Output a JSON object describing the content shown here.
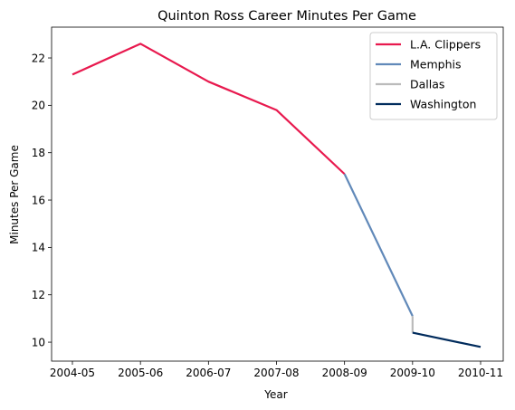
{
  "chart_data": {
    "type": "line",
    "title": "Quinton Ross Career Minutes Per Game",
    "xlabel": "Year",
    "ylabel": "Minutes Per Game",
    "categories": [
      "2004-05",
      "2005-06",
      "2006-07",
      "2007-08",
      "2008-09",
      "2009-10",
      "2010-11"
    ],
    "ylim": [
      9.2,
      23.3
    ],
    "yticks": [
      10,
      12,
      14,
      16,
      18,
      20,
      22
    ],
    "grid": false,
    "legend_position": "top-right",
    "series": [
      {
        "name": "L.A. Clippers",
        "color": "#e8194e",
        "points": [
          {
            "x": "2004-05",
            "y": 21.3
          },
          {
            "x": "2005-06",
            "y": 22.6
          },
          {
            "x": "2006-07",
            "y": 21.0
          },
          {
            "x": "2007-08",
            "y": 19.8
          },
          {
            "x": "2008-09",
            "y": 17.1
          }
        ]
      },
      {
        "name": "Memphis",
        "color": "#6189b9",
        "points": [
          {
            "x": "2008-09",
            "y": 17.1
          },
          {
            "x": "2009-10",
            "y": 11.1
          }
        ]
      },
      {
        "name": "Dallas",
        "color": "#bbbbbb",
        "points": [
          {
            "x": "2009-10",
            "y": 11.1
          },
          {
            "x": "2009-10",
            "y": 10.4
          }
        ]
      },
      {
        "name": "Washington",
        "color": "#002b5c",
        "points": [
          {
            "x": "2009-10",
            "y": 10.4
          },
          {
            "x": "2010-11",
            "y": 9.8
          }
        ]
      }
    ]
  }
}
